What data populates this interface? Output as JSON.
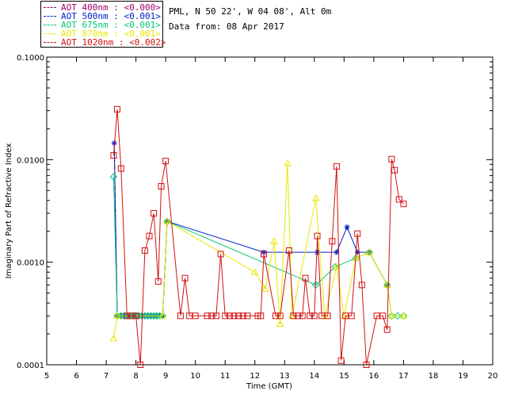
{
  "header": {
    "site": "PML, N 50 22', W 04 08', Alt 0m",
    "date": "Data from: 08 Apr 2017"
  },
  "legend": [
    {
      "label": "AOT  400nm : <0.000>",
      "color": "#a00070"
    },
    {
      "label": "AOT  500nm : <0.001>",
      "color": "#0020c8"
    },
    {
      "label": "AOT  675nm : <0.001>",
      "color": "#00c870"
    },
    {
      "label": "AOT  870nm : <0.001>",
      "color": "#e8e800"
    },
    {
      "label": "AOT 1020nm : <0.002>",
      "color": "#d01010"
    }
  ],
  "chart_data": {
    "type": "line",
    "title": "",
    "xlabel": "Time (GMT)",
    "ylabel": "Imaginary Part of Refractive Index",
    "xlim": [
      5,
      20
    ],
    "ylim": [
      0.0001,
      0.1
    ],
    "yscale": "log",
    "xticks": [
      "5",
      "6",
      "7",
      "8",
      "9",
      "10",
      "11",
      "12",
      "13",
      "14",
      "15",
      "16",
      "17",
      "18",
      "19",
      "20"
    ],
    "yticks": [
      "0.0001",
      "0.0010",
      "0.0100",
      "0.1000"
    ],
    "series": [
      {
        "name": "AOT  400nm",
        "color": "#a00070",
        "marker": "dash",
        "points": [
          [
            7.27,
            0.0145
          ],
          [
            7.37,
            0.0003
          ],
          [
            7.5,
            0.0003
          ],
          [
            7.6,
            0.0003
          ],
          [
            7.7,
            0.0003
          ],
          [
            7.8,
            0.0003
          ],
          [
            7.9,
            0.0003
          ],
          [
            8.0,
            0.0003
          ],
          [
            8.1,
            0.0003
          ],
          [
            8.2,
            0.0003
          ],
          [
            8.3,
            0.0003
          ],
          [
            8.4,
            0.0003
          ],
          [
            8.5,
            0.0003
          ],
          [
            8.6,
            0.0003
          ],
          [
            8.7,
            0.0003
          ],
          [
            8.8,
            0.0003
          ],
          [
            8.9,
            0.0003
          ],
          [
            9.05,
            0.0025
          ]
        ]
      },
      {
        "name": "AOT  500nm",
        "color": "#0020c8",
        "marker": "star",
        "points": [
          [
            7.27,
            0.0145
          ],
          [
            7.37,
            0.0003
          ],
          [
            7.5,
            0.0003
          ],
          [
            7.6,
            0.0003
          ],
          [
            7.7,
            0.0003
          ],
          [
            7.8,
            0.0003
          ],
          [
            7.9,
            0.0003
          ],
          [
            8.0,
            0.0003
          ],
          [
            8.1,
            0.0003
          ],
          [
            8.2,
            0.0003
          ],
          [
            8.3,
            0.0003
          ],
          [
            8.4,
            0.0003
          ],
          [
            8.5,
            0.0003
          ],
          [
            8.6,
            0.0003
          ],
          [
            8.7,
            0.0003
          ],
          [
            8.8,
            0.0003
          ],
          [
            8.9,
            0.0003
          ],
          [
            9.05,
            0.0025
          ],
          [
            12.3,
            0.00125
          ],
          [
            14.1,
            0.00125
          ],
          [
            14.75,
            0.00125
          ],
          [
            15.1,
            0.0022
          ],
          [
            15.45,
            0.00125
          ],
          [
            15.85,
            0.00125
          ],
          [
            16.45,
            0.0006
          ]
        ]
      },
      {
        "name": "AOT  675nm",
        "color": "#00c870",
        "marker": "diamond",
        "points": [
          [
            7.25,
            0.0068
          ],
          [
            7.37,
            0.0003
          ],
          [
            7.5,
            0.0003
          ],
          [
            7.6,
            0.0003
          ],
          [
            7.7,
            0.0003
          ],
          [
            7.8,
            0.0003
          ],
          [
            7.9,
            0.0003
          ],
          [
            8.0,
            0.0003
          ],
          [
            8.1,
            0.0003
          ],
          [
            8.2,
            0.0003
          ],
          [
            8.3,
            0.0003
          ],
          [
            8.4,
            0.0003
          ],
          [
            8.5,
            0.0003
          ],
          [
            8.6,
            0.0003
          ],
          [
            8.7,
            0.0003
          ],
          [
            8.8,
            0.0003
          ],
          [
            8.9,
            0.0003
          ],
          [
            9.05,
            0.0025
          ],
          [
            14.05,
            0.0006
          ],
          [
            14.7,
            0.0009
          ],
          [
            15.4,
            0.0011
          ],
          [
            15.85,
            0.00125
          ],
          [
            16.45,
            0.0006
          ],
          [
            16.6,
            0.0003
          ],
          [
            16.8,
            0.0003
          ],
          [
            17.0,
            0.0003
          ]
        ]
      },
      {
        "name": "AOT  870nm",
        "color": "#e8e800",
        "marker": "triangle",
        "points": [
          [
            7.25,
            0.00018
          ],
          [
            7.37,
            0.0003
          ],
          [
            8.9,
            0.0003
          ],
          [
            9.05,
            0.0025
          ],
          [
            12.0,
            0.0008
          ],
          [
            12.35,
            0.00055
          ],
          [
            12.65,
            0.0016
          ],
          [
            12.85,
            0.00025
          ],
          [
            13.1,
            0.0092
          ],
          [
            13.25,
            0.0003
          ],
          [
            14.05,
            0.0042
          ],
          [
            14.35,
            0.0003
          ],
          [
            14.75,
            0.0009
          ],
          [
            15.0,
            0.0003
          ],
          [
            15.4,
            0.0011
          ],
          [
            15.85,
            0.00125
          ],
          [
            16.45,
            0.0006
          ],
          [
            16.6,
            0.0003
          ],
          [
            17.0,
            0.0003
          ]
        ]
      },
      {
        "name": "AOT 1020nm",
        "color": "#d01010",
        "marker": "square",
        "points": [
          [
            7.25,
            0.011
          ],
          [
            7.37,
            0.031
          ],
          [
            7.5,
            0.0082
          ],
          [
            7.7,
            0.0003
          ],
          [
            7.85,
            0.0003
          ],
          [
            8.0,
            0.0003
          ],
          [
            8.15,
            0.0001
          ],
          [
            8.3,
            0.0013
          ],
          [
            8.45,
            0.0018
          ],
          [
            8.6,
            0.003
          ],
          [
            8.75,
            0.00065
          ],
          [
            8.85,
            0.0055
          ],
          [
            9.0,
            0.0097
          ],
          [
            9.5,
            0.0003
          ],
          [
            9.65,
            0.0007
          ],
          [
            9.8,
            0.0003
          ],
          [
            10.0,
            0.0003
          ],
          [
            10.4,
            0.0003
          ],
          [
            10.55,
            0.0003
          ],
          [
            10.7,
            0.0003
          ],
          [
            10.85,
            0.0012
          ],
          [
            11.0,
            0.0003
          ],
          [
            11.15,
            0.0003
          ],
          [
            11.3,
            0.0003
          ],
          [
            11.45,
            0.0003
          ],
          [
            11.6,
            0.0003
          ],
          [
            11.75,
            0.0003
          ],
          [
            12.1,
            0.0003
          ],
          [
            12.2,
            0.0003
          ],
          [
            12.3,
            0.0012
          ],
          [
            12.7,
            0.0003
          ],
          [
            12.85,
            0.0003
          ],
          [
            13.15,
            0.0013
          ],
          [
            13.3,
            0.0003
          ],
          [
            13.45,
            0.0003
          ],
          [
            13.6,
            0.0003
          ],
          [
            13.7,
            0.0007
          ],
          [
            13.85,
            0.0003
          ],
          [
            14.0,
            0.0003
          ],
          [
            14.1,
            0.0018
          ],
          [
            14.25,
            0.0003
          ],
          [
            14.45,
            0.0003
          ],
          [
            14.6,
            0.0016
          ],
          [
            14.75,
            0.0086
          ],
          [
            14.9,
            0.00011
          ],
          [
            15.05,
            0.0003
          ],
          [
            15.25,
            0.0003
          ],
          [
            15.45,
            0.0019
          ],
          [
            15.6,
            0.0006
          ],
          [
            15.75,
            0.0001
          ],
          [
            16.1,
            0.0003
          ],
          [
            16.3,
            0.0003
          ],
          [
            16.45,
            0.00022
          ],
          [
            16.6,
            0.0101
          ],
          [
            16.7,
            0.0079
          ],
          [
            16.85,
            0.0041
          ],
          [
            17.0,
            0.0037
          ]
        ]
      }
    ]
  }
}
